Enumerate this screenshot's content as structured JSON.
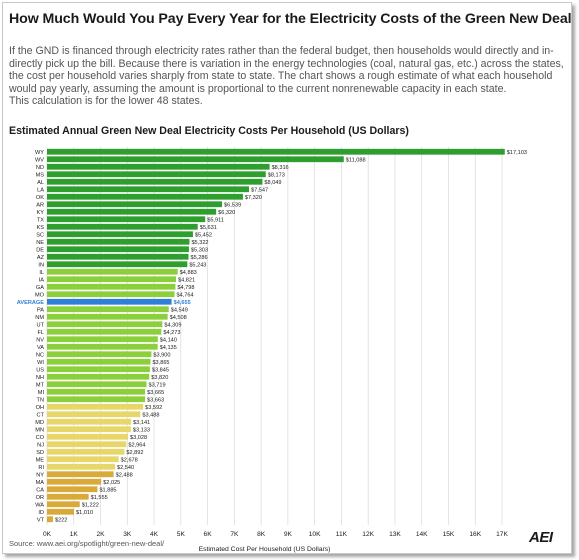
{
  "title": "How Much Would You Pay Every Year for the Electricity Costs of the Green New Deal?",
  "description": [
    "If the GND is financed through electricity rates rather than the federal budget, then households would directly and in-",
    "directly pick up the bill. Because there is variation in the energy technologies (coal, natural gas, etc.) across the states,",
    "the cost per household varies sharply from state to state. The chart shows a rough estimate of what each household",
    "would pay yearly, assuming the amount is proportional to the current nonrenewable capacity in each state.",
    "This calculation is for the lower 48 states."
  ],
  "source": "Source: www.aei.org/spotlight/green-new-deal/",
  "brand": "AEI",
  "colors": {
    "green_dark": "#2e9e2e",
    "green_light": "#8bcf3c",
    "yellow_light": "#e7d66a",
    "gold": "#d9a93a",
    "average": "#2f7fd8",
    "average_label": "#2f7fd8",
    "grid": "#d8d8d8",
    "text": "#1a1a1a"
  },
  "chart_data": {
    "type": "bar",
    "orientation": "horizontal",
    "title": "Estimated Annual Green New Deal Electricity Costs Per Household (US Dollars)",
    "xlabel": "Estimated Cost Per Household (US Dollars)",
    "ylabel": "",
    "xlim": [
      0,
      17000
    ],
    "x_ticks": [
      "0K",
      "1K",
      "2K",
      "3K",
      "4K",
      "5K",
      "6K",
      "7K",
      "8K",
      "9K",
      "10K",
      "11K",
      "12K",
      "13K",
      "14K",
      "15K",
      "16K",
      "17K"
    ],
    "grid": true,
    "highlight": "AVERAGE",
    "categories": [
      "WY",
      "WV",
      "ND",
      "MS",
      "AL",
      "LA",
      "OK",
      "AR",
      "KY",
      "TX",
      "KS",
      "SC",
      "NE",
      "DE",
      "AZ",
      "IN",
      "IL",
      "IA",
      "GA",
      "MO",
      "AVERAGE",
      "PA",
      "NM",
      "UT",
      "FL",
      "NV",
      "VA",
      "NC",
      "WI",
      "US",
      "NH",
      "MT",
      "MI",
      "TN",
      "OH",
      "CT",
      "MD",
      "MN",
      "CO",
      "NJ",
      "SD",
      "ME",
      "RI",
      "NY",
      "MA",
      "CA",
      "OR",
      "WA",
      "ID",
      "VT"
    ],
    "values": [
      17103,
      11088,
      8316,
      8173,
      8049,
      7547,
      7320,
      6539,
      6320,
      5911,
      5631,
      5452,
      5322,
      5303,
      5286,
      5243,
      4883,
      4821,
      4798,
      4764,
      4655,
      4549,
      4508,
      4309,
      4273,
      4140,
      4135,
      3900,
      3865,
      3845,
      3820,
      3719,
      3665,
      3663,
      3592,
      3488,
      3141,
      3133,
      3028,
      2964,
      2892,
      2678,
      2540,
      2488,
      2025,
      1885,
      1555,
      1222,
      1010,
      222
    ],
    "value_labels": [
      "$17,103",
      "$11,088",
      "$8,316",
      "$8,173",
      "$8,049",
      "$7,547",
      "$7,320",
      "$6,539",
      "$6,320",
      "$5,911",
      "$5,631",
      "$5,452",
      "$5,322",
      "$5,303",
      "$5,286",
      "$5,243",
      "$4,883",
      "$4,821",
      "$4,798",
      "$4,764",
      "$4,655",
      "$4,549",
      "$4,508",
      "$4,309",
      "$4,273",
      "$4,140",
      "$4,135",
      "$3,900",
      "$3,865",
      "$3,845",
      "$3,820",
      "$3,719",
      "$3,665",
      "$3,663",
      "$3,592",
      "$3,488",
      "$3,141",
      "$3,133",
      "$3,028",
      "$2,964",
      "$2,892",
      "$2,678",
      "$2,540",
      "$2,488",
      "$2,025",
      "$1,885",
      "$1,555",
      "$1,222",
      "$1,010",
      "$222"
    ]
  }
}
